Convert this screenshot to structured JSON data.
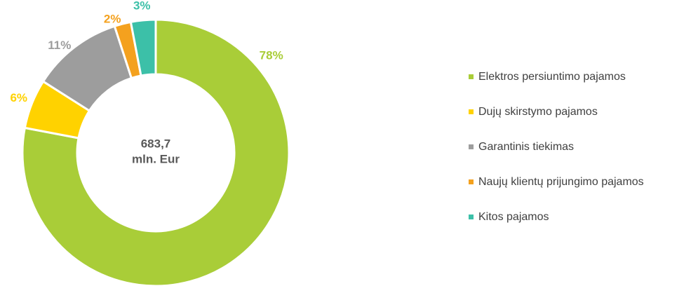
{
  "chart_data": {
    "type": "donut",
    "center_text": [
      "683,7",
      "mln. Eur"
    ],
    "categories": [
      "Elektros persiuntimo pajamos",
      "Dujų skirstymo pajamos",
      "Garantinis tiekimas",
      "Naujų klientų prijungimo pajamos",
      "Kitos pajamos"
    ],
    "values": [
      78,
      6,
      11,
      2,
      3
    ],
    "value_labels": [
      "78%",
      "6%",
      "11%",
      "2%",
      "3%"
    ],
    "colors": [
      "#a9cd38",
      "#ffd200",
      "#9d9d9d",
      "#f4a11e",
      "#3cc0a8"
    ],
    "legend": "right"
  }
}
